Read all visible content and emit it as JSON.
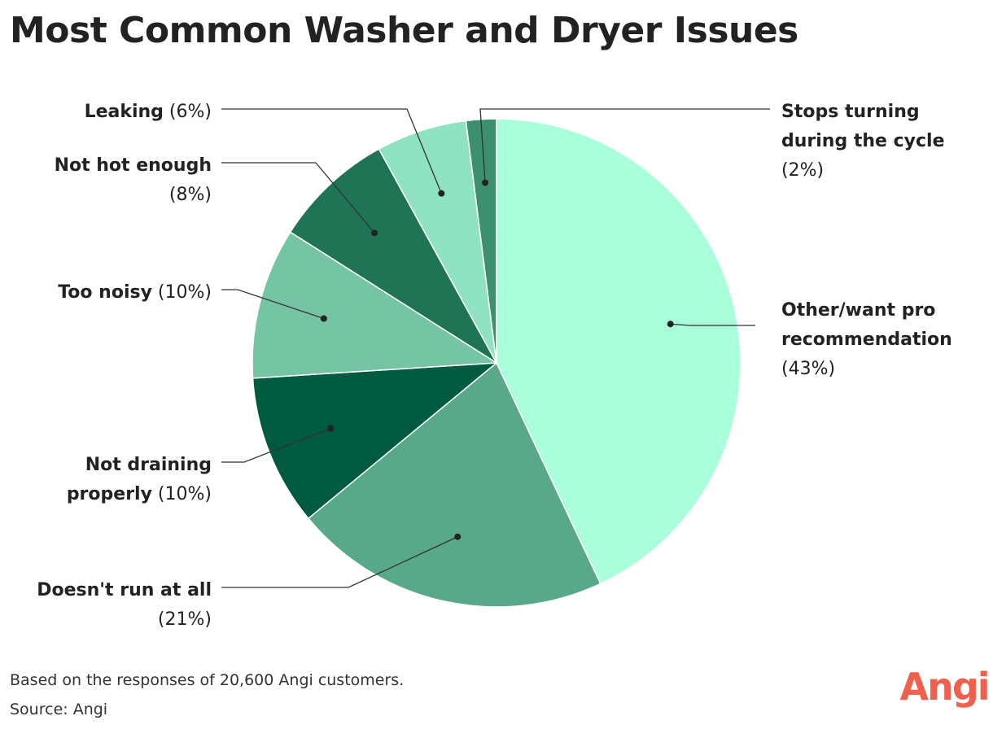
{
  "title": "Most Common Washer and Dryer Issues",
  "footer": {
    "note": "Based on the responses of 20,600 Angi customers.",
    "source": "Source: Angi"
  },
  "brand": {
    "logo_text": "Angi",
    "color": "#f0604d"
  },
  "chart_data": {
    "type": "pie",
    "title": "Most Common Washer and Dryer Issues",
    "unit": "%",
    "slices": [
      {
        "label": "Other/want pro recommendation",
        "lines": [
          [
            "Other/want pro",
            ""
          ],
          [
            "recommendation",
            ""
          ],
          [
            "",
            "(43%)"
          ]
        ],
        "value": 43,
        "pct_text": "(43%)",
        "color": "#aaffdb"
      },
      {
        "label": "Doesn't run at all",
        "lines": [
          [
            "Doesn't run at all",
            ""
          ],
          [
            "",
            "(21%)"
          ]
        ],
        "value": 21,
        "pct_text": "(21%)",
        "color": "#58a98a"
      },
      {
        "label": "Not draining properly",
        "lines": [
          [
            "Not draining",
            ""
          ],
          [
            "properly",
            " (10%)"
          ]
        ],
        "value": 10,
        "pct_text": "(10%)",
        "color": "#005a40"
      },
      {
        "label": "Too noisy",
        "lines": [
          [
            "Too noisy",
            " (10%)"
          ]
        ],
        "value": 10,
        "pct_text": "(10%)",
        "color": "#75c5a5"
      },
      {
        "label": "Not hot enough",
        "lines": [
          [
            "Not hot enough",
            ""
          ],
          [
            "",
            "(8%)"
          ]
        ],
        "value": 8,
        "pct_text": "(8%)",
        "color": "#1e7455"
      },
      {
        "label": "Leaking",
        "lines": [
          [
            "Leaking",
            " (6%)"
          ]
        ],
        "value": 6,
        "pct_text": "(6%)",
        "color": "#8fe2c2"
      },
      {
        "label": "Stops turning during the cycle",
        "lines": [
          [
            "Stops turning",
            ""
          ],
          [
            "during the cycle",
            ""
          ],
          [
            "",
            "(2%)"
          ]
        ],
        "value": 2,
        "pct_text": "(2%)",
        "color": "#3c8f6f"
      }
    ]
  }
}
